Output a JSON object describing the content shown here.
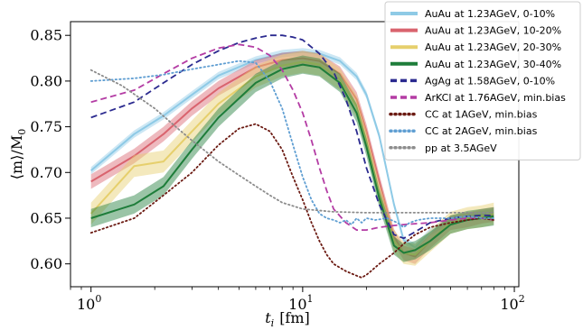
{
  "chart_data": {
    "type": "line",
    "title": "",
    "xlabel": {
      "symbol": "t",
      "sub": "i",
      "unit": "[fm]"
    },
    "ylabel": {
      "prefix": "⟨m⟩/M",
      "sub": "0"
    },
    "x_scale": "log",
    "xlim": [
      0.8,
      105
    ],
    "ylim": [
      0.575,
      0.865
    ],
    "x_ticks": [
      {
        "value": 1,
        "base": "10",
        "exp": "0"
      },
      {
        "value": 10,
        "base": "10",
        "exp": "1"
      },
      {
        "value": 100,
        "base": "10",
        "exp": "2"
      }
    ],
    "y_ticks": [
      {
        "value": 0.6,
        "label": "0.60"
      },
      {
        "value": 0.65,
        "label": "0.65"
      },
      {
        "value": 0.7,
        "label": "0.70"
      },
      {
        "value": 0.75,
        "label": "0.75"
      },
      {
        "value": 0.8,
        "label": "0.80"
      },
      {
        "value": 0.85,
        "label": "0.85"
      }
    ],
    "grid": false,
    "legend_position": "top-right",
    "series": [
      {
        "name": "AuAu at 1.23AGeV, 0-10%",
        "color": "#8ecae6",
        "style": "solid",
        "band": 0.004,
        "x": [
          1,
          1.6,
          2.2,
          3,
          4,
          6,
          8,
          10,
          12,
          15,
          18,
          20,
          23,
          27,
          30,
          34,
          40,
          50,
          60,
          70,
          80
        ],
        "y": [
          0.702,
          0.742,
          0.762,
          0.785,
          0.806,
          0.823,
          0.83,
          0.832,
          0.83,
          0.822,
          0.805,
          0.785,
          0.74,
          0.665,
          0.626,
          0.618,
          0.635,
          0.648,
          0.652,
          0.654,
          0.656
        ]
      },
      {
        "name": "AuAu at 1.23AGeV, 10-20%",
        "color": "#d9636e",
        "style": "solid",
        "band": 0.008,
        "x": [
          1,
          1.6,
          2.2,
          3,
          4,
          6,
          8,
          10,
          12,
          15,
          18,
          20,
          23,
          27,
          30,
          34,
          40,
          50,
          60,
          70,
          80
        ],
        "y": [
          0.69,
          0.718,
          0.742,
          0.77,
          0.792,
          0.815,
          0.823,
          0.825,
          0.822,
          0.808,
          0.78,
          0.745,
          0.69,
          0.63,
          0.612,
          0.608,
          0.625,
          0.645,
          0.648,
          0.652,
          0.654
        ]
      },
      {
        "name": "AuAu at 1.23AGeV, 20-30%",
        "color": "#e6cf6c",
        "style": "solid",
        "band": 0.012,
        "x": [
          1,
          1.6,
          2.2,
          3,
          4,
          6,
          8,
          10,
          12,
          15,
          18,
          20,
          23,
          27,
          30,
          34,
          40,
          50,
          60,
          70,
          80
        ],
        "y": [
          0.655,
          0.707,
          0.712,
          0.745,
          0.775,
          0.805,
          0.817,
          0.821,
          0.818,
          0.802,
          0.772,
          0.735,
          0.678,
          0.625,
          0.612,
          0.61,
          0.625,
          0.645,
          0.65,
          0.652,
          0.655
        ]
      },
      {
        "name": "AuAu at 1.23AGeV, 30-40%",
        "color": "#1e7d3a",
        "style": "solid",
        "band": 0.01,
        "x": [
          1,
          1.6,
          2.2,
          3,
          4,
          6,
          8,
          10,
          12,
          15,
          18,
          20,
          23,
          27,
          30,
          34,
          40,
          50,
          60,
          70,
          80
        ],
        "y": [
          0.65,
          0.665,
          0.685,
          0.725,
          0.76,
          0.798,
          0.813,
          0.818,
          0.815,
          0.798,
          0.765,
          0.728,
          0.672,
          0.62,
          0.612,
          0.615,
          0.625,
          0.643,
          0.648,
          0.65,
          0.652
        ]
      },
      {
        "name": "AgAg at 1.58AGeV, 0-10%",
        "color": "#2b2a8f",
        "style": "dashed",
        "band": 0,
        "x": [
          1,
          1.6,
          2.2,
          3,
          4,
          5,
          6,
          7,
          8,
          9,
          10,
          12,
          14,
          16,
          18,
          20,
          23,
          27,
          30,
          34,
          40,
          50,
          60,
          70,
          80
        ],
        "y": [
          0.76,
          0.777,
          0.798,
          0.818,
          0.833,
          0.842,
          0.847,
          0.85,
          0.85,
          0.848,
          0.845,
          0.83,
          0.81,
          0.78,
          0.745,
          0.705,
          0.665,
          0.632,
          0.628,
          0.635,
          0.645,
          0.65,
          0.652,
          0.653,
          0.653
        ]
      },
      {
        "name": "ArKCl at 1.76AGeV, min.bias",
        "color": "#b43ca4",
        "style": "dashed",
        "band": 0,
        "x": [
          1,
          1.6,
          2.2,
          3,
          4,
          5,
          6,
          7,
          8,
          9,
          10,
          11,
          12,
          13,
          14,
          16,
          18,
          20,
          23,
          27,
          30,
          40,
          50,
          60,
          70,
          80
        ],
        "y": [
          0.777,
          0.79,
          0.808,
          0.825,
          0.836,
          0.84,
          0.837,
          0.828,
          0.812,
          0.79,
          0.765,
          0.735,
          0.705,
          0.68,
          0.66,
          0.645,
          0.637,
          0.637,
          0.64,
          0.642,
          0.643,
          0.645,
          0.648,
          0.65,
          0.65,
          0.648
        ]
      },
      {
        "name": "CC at 1AGeV, min.bias",
        "color": "#6b1a12",
        "style": "dotted",
        "band": 0,
        "x": [
          1,
          1.6,
          2.2,
          3,
          4,
          5,
          6,
          7,
          8,
          9,
          10,
          11,
          12,
          13,
          14,
          16,
          18,
          19,
          20,
          21,
          23,
          27,
          30,
          34,
          40,
          50,
          60,
          70,
          80
        ],
        "y": [
          0.634,
          0.65,
          0.675,
          0.7,
          0.73,
          0.748,
          0.753,
          0.745,
          0.725,
          0.695,
          0.67,
          0.645,
          0.625,
          0.61,
          0.6,
          0.592,
          0.587,
          0.585,
          0.588,
          0.592,
          0.6,
          0.612,
          0.622,
          0.632,
          0.64,
          0.645,
          0.648,
          0.65,
          0.648
        ]
      },
      {
        "name": "CC at 2AGeV, min.bias",
        "color": "#5f9ed2",
        "style": "dotted",
        "band": 0,
        "x": [
          1,
          1.6,
          2.2,
          3,
          4,
          5,
          6,
          7,
          8,
          9,
          10,
          11,
          12,
          13,
          14,
          15,
          16,
          17,
          18,
          19,
          20,
          22,
          25,
          28,
          30,
          32,
          35,
          40,
          50,
          60,
          70,
          80
        ],
        "y": [
          0.8,
          0.803,
          0.807,
          0.813,
          0.818,
          0.822,
          0.82,
          0.8,
          0.77,
          0.73,
          0.695,
          0.67,
          0.655,
          0.65,
          0.648,
          0.645,
          0.648,
          0.643,
          0.65,
          0.645,
          0.65,
          0.648,
          0.65,
          0.645,
          0.64,
          0.645,
          0.648,
          0.65,
          0.65,
          0.652,
          0.65,
          0.65
        ]
      },
      {
        "name": "pp at 3.5AGeV",
        "color": "#8c8c8c",
        "style": "dotted",
        "band": 0,
        "x": [
          1,
          1.4,
          2,
          2.6,
          3,
          4,
          5,
          6,
          7,
          8,
          10,
          14,
          20,
          30,
          50,
          80
        ],
        "y": [
          0.812,
          0.795,
          0.77,
          0.747,
          0.735,
          0.712,
          0.697,
          0.685,
          0.675,
          0.667,
          0.66,
          0.657,
          0.656,
          0.656,
          0.656,
          0.656
        ]
      }
    ]
  }
}
